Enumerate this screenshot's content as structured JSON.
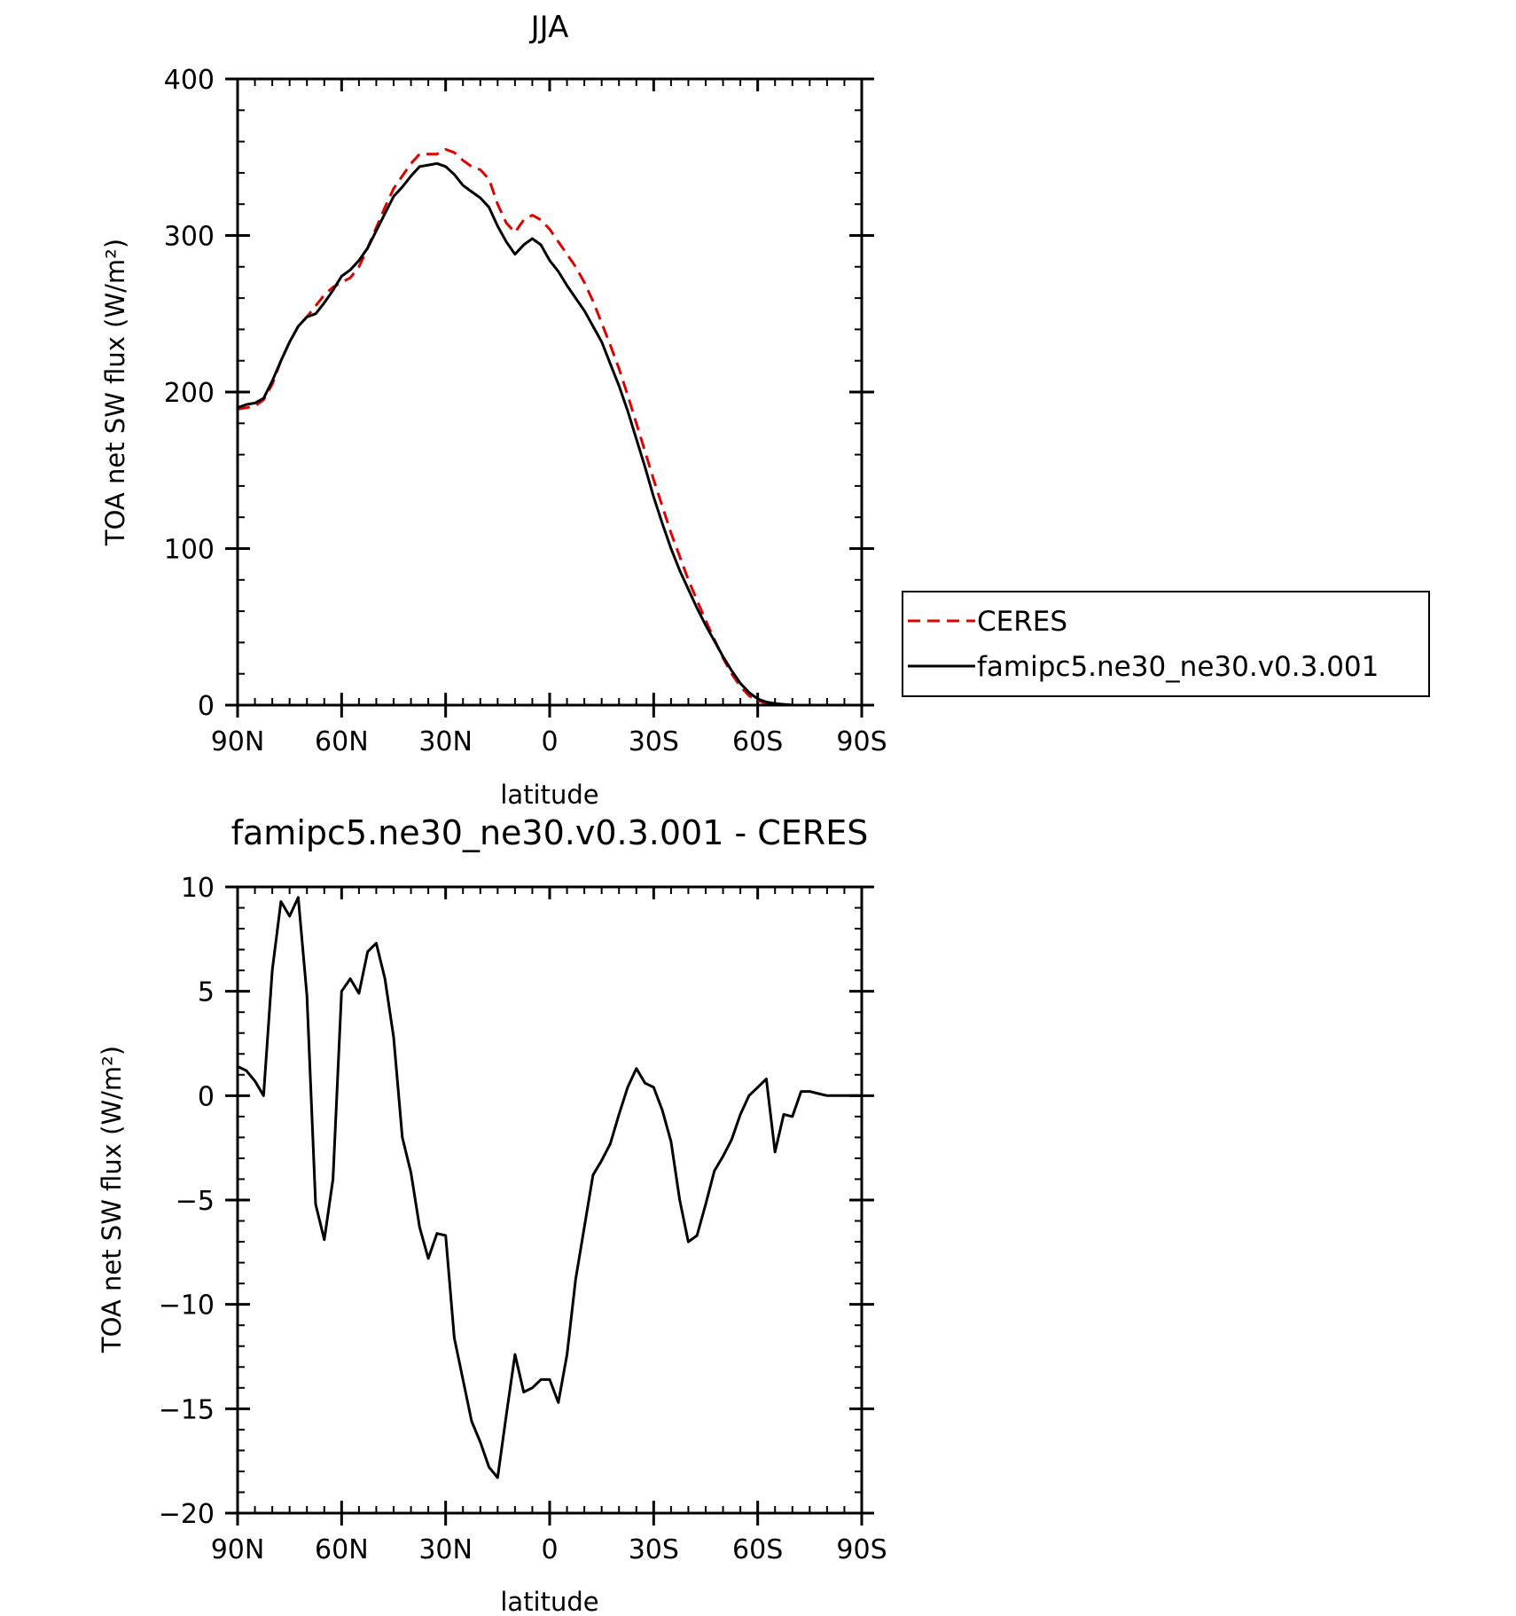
{
  "chart_data": [
    {
      "type": "line",
      "title": "JJA",
      "xlabel": "latitude",
      "ylabel": "TOA net SW flux (W/m²)",
      "xlim": [
        90,
        -90
      ],
      "ylim": [
        0,
        400
      ],
      "xticks": [
        90,
        60,
        30,
        0,
        -30,
        -60,
        -90
      ],
      "xtick_labels": [
        "90N",
        "60N",
        "30N",
        "0",
        "30S",
        "60S",
        "90S"
      ],
      "yticks": [
        0,
        100,
        200,
        300,
        400
      ],
      "ytick_labels": [
        "0",
        "100",
        "200",
        "300",
        "400"
      ],
      "legend_position": "right",
      "x": [
        90,
        87.5,
        85,
        82.5,
        80,
        77.5,
        75,
        72.5,
        70,
        67.5,
        65,
        62.5,
        60,
        57.5,
        55,
        52.5,
        50,
        47.5,
        45,
        42.5,
        40,
        37.5,
        35,
        32.5,
        30,
        27.5,
        25,
        22.5,
        20,
        17.5,
        15,
        12.5,
        10,
        7.5,
        5,
        2.5,
        0,
        -2.5,
        -5,
        -7.5,
        -10,
        -12.5,
        -15,
        -17.5,
        -20,
        -22.5,
        -25,
        -27.5,
        -30,
        -32.5,
        -35,
        -37.5,
        -40,
        -42.5,
        -45,
        -47.5,
        -50,
        -52.5,
        -55,
        -57.5,
        -60,
        -62.5,
        -65,
        -67.5,
        -70,
        -72.5,
        -75,
        -77.5,
        -80,
        -82.5,
        -85,
        -87.5,
        -90
      ],
      "series": [
        {
          "name": "CERES",
          "color": "#e00000",
          "dash": true,
          "values": [
            189,
            190,
            191,
            195,
            205,
            220,
            232,
            242,
            248,
            255,
            262,
            267,
            270,
            273,
            280,
            292,
            305,
            318,
            330,
            338,
            346,
            352,
            352,
            352,
            355,
            353,
            348,
            344,
            342,
            336,
            320,
            308,
            302,
            310,
            313,
            310,
            304,
            296,
            288,
            280,
            270,
            258,
            244,
            230,
            215,
            198,
            180,
            162,
            144,
            127,
            110,
            95,
            80,
            67,
            54,
            42,
            30,
            20,
            12,
            6,
            3,
            1,
            0.5,
            0.2,
            0,
            0,
            0,
            0,
            0,
            0,
            0,
            0,
            0
          ]
        },
        {
          "name": "famipc5.ne30_ne30.v0.3.001",
          "color": "#000000",
          "dash": false,
          "values": [
            190,
            192,
            193,
            196,
            207,
            220,
            232,
            242,
            248,
            250,
            257,
            265,
            274,
            278,
            284,
            292,
            303,
            314,
            325,
            331,
            338,
            344,
            345,
            346,
            344,
            339,
            332,
            328,
            324,
            318,
            306,
            296,
            288,
            294,
            298,
            294,
            284,
            277,
            268,
            260,
            252,
            242,
            232,
            218,
            204,
            188,
            170,
            152,
            133,
            116,
            100,
            86,
            74,
            62,
            51,
            41,
            31,
            22,
            14,
            8,
            4,
            2,
            1,
            0.5,
            0,
            0,
            0,
            0,
            0,
            0,
            0,
            0,
            0
          ]
        }
      ]
    },
    {
      "type": "line",
      "title": "famipc5.ne30_ne30.v0.3.001 - CERES",
      "xlabel": "latitude",
      "ylabel": "TOA net SW flux (W/m²)",
      "xlim": [
        90,
        -90
      ],
      "ylim": [
        -20,
        10
      ],
      "xticks": [
        90,
        60,
        30,
        0,
        -30,
        -60,
        -90
      ],
      "xtick_labels": [
        "90N",
        "60N",
        "30N",
        "0",
        "30S",
        "60S",
        "90S"
      ],
      "yticks": [
        -20,
        -15,
        -10,
        -5,
        0,
        5,
        10
      ],
      "ytick_labels": [
        "−20",
        "−15",
        "−10",
        "−5",
        "0",
        "5",
        "10"
      ],
      "x": [
        90,
        87.5,
        85,
        82.5,
        80,
        77.5,
        75,
        72.5,
        70,
        67.5,
        65,
        62.5,
        60,
        57.5,
        55,
        52.5,
        50,
        47.5,
        45,
        42.5,
        40,
        37.5,
        35,
        32.5,
        30,
        27.5,
        25,
        22.5,
        20,
        17.5,
        15,
        12.5,
        10,
        7.5,
        5,
        2.5,
        0,
        -2.5,
        -5,
        -7.5,
        -10,
        -12.5,
        -15,
        -17.5,
        -20,
        -22.5,
        -25,
        -27.5,
        -30,
        -32.5,
        -35,
        -37.5,
        -40,
        -42.5,
        -45,
        -47.5,
        -50,
        -52.5,
        -55,
        -57.5,
        -60,
        -62.5,
        -65,
        -67.5,
        -70,
        -72.5,
        -75,
        -77.5,
        -80,
        -82.5,
        -85,
        -87.5,
        -90
      ],
      "series": [
        {
          "color": "#000000",
          "values": [
            1.4,
            1.2,
            0.7,
            0.0,
            6.0,
            9.3,
            8.6,
            9.5,
            4.8,
            -5.2,
            -6.9,
            -4.0,
            5.0,
            5.6,
            4.9,
            6.9,
            7.3,
            5.6,
            2.8,
            -2.0,
            -3.7,
            -6.3,
            -7.8,
            -6.6,
            -6.7,
            -11.6,
            -13.6,
            -15.6,
            -16.6,
            -17.8,
            -18.3,
            -15.3,
            -12.4,
            -14.2,
            -14.0,
            -13.6,
            -13.6,
            -14.7,
            -12.4,
            -8.8,
            -6.3,
            -3.8,
            -3.1,
            -2.3,
            -0.9,
            0.4,
            1.3,
            0.6,
            0.4,
            -0.7,
            -2.2,
            -5.0,
            -7.0,
            -6.7,
            -5.2,
            -3.6,
            -2.9,
            -2.1,
            -0.9,
            0.0,
            0.4,
            0.8,
            -2.7,
            -0.9,
            -1.0,
            0.2,
            0.2,
            0.1,
            0.0,
            0.0,
            0.0,
            0.0,
            0.0
          ]
        }
      ]
    }
  ]
}
